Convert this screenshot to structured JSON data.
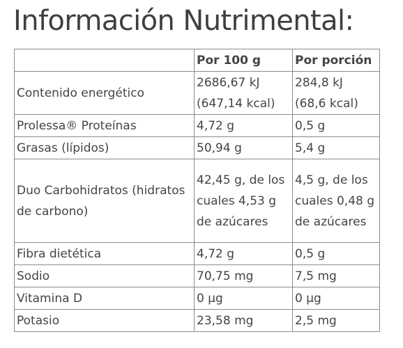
{
  "title": "Información Nutrimental:",
  "table": {
    "headers": [
      "",
      "Por 100 g",
      "Por porción"
    ],
    "rows": [
      {
        "nutrient": "Contenido energético",
        "per100": [
          "2686,67 kJ",
          "(647,14 kcal)"
        ],
        "perPortion": [
          "284,8 kJ",
          "(68,6 kcal)"
        ]
      },
      {
        "nutrient": "Prolessa® Proteínas",
        "per100": [
          "4,72 g"
        ],
        "perPortion": [
          "0,5 g"
        ]
      },
      {
        "nutrient": "Grasas (lípidos)",
        "per100": [
          "50,94 g"
        ],
        "perPortion": [
          "5,4 g"
        ]
      },
      {
        "nutrient": "Duo Carbohidratos (hidratos de carbono)",
        "per100": [
          "42,45 g, de los cuales 4,53 g de azúcares"
        ],
        "perPortion": [
          "4,5 g, de los cuales  0,48 g de azúcares"
        ]
      },
      {
        "nutrient": "Fibra dietética",
        "per100": [
          "4,72 g"
        ],
        "perPortion": [
          "0,5 g"
        ]
      },
      {
        "nutrient": "Sodio",
        "per100": [
          "70,75 mg"
        ],
        "perPortion": [
          "7,5 mg"
        ]
      },
      {
        "nutrient": "Vitamina D",
        "per100": [
          "0 µg"
        ],
        "perPortion": [
          "0 µg"
        ]
      },
      {
        "nutrient": "Potasio",
        "per100": [
          "23,58 mg"
        ],
        "perPortion": [
          "2,5 mg"
        ]
      }
    ]
  }
}
